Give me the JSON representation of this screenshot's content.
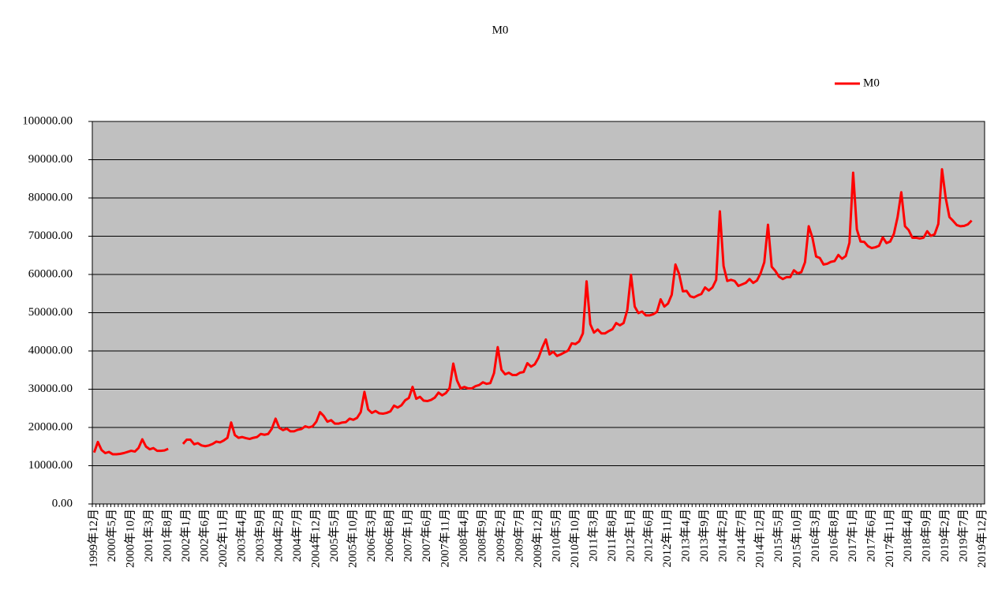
{
  "chart_data": {
    "type": "line",
    "title": "M0",
    "categories": [
      "1999年12月",
      null,
      null,
      null,
      null,
      "2000年5月",
      null,
      null,
      null,
      null,
      "2000年10月",
      null,
      null,
      null,
      null,
      "2001年3月",
      null,
      null,
      null,
      null,
      "2001年8月",
      null,
      null,
      null,
      null,
      "2002年1月",
      null,
      null,
      null,
      null,
      "2002年6月",
      null,
      null,
      null,
      null,
      "2002年11月",
      null,
      null,
      null,
      null,
      "2003年4月",
      null,
      null,
      null,
      null,
      "2003年9月",
      null,
      null,
      null,
      null,
      "2004年2月",
      null,
      null,
      null,
      null,
      "2004年7月",
      null,
      null,
      null,
      null,
      "2004年12月",
      null,
      null,
      null,
      null,
      "2005年5月",
      null,
      null,
      null,
      null,
      "2005年10月",
      null,
      null,
      null,
      null,
      "2006年3月",
      null,
      null,
      null,
      null,
      "2006年8月",
      null,
      null,
      null,
      null,
      "2007年1月",
      null,
      null,
      null,
      null,
      "2007年6月",
      null,
      null,
      null,
      null,
      "2007年11月",
      null,
      null,
      null,
      null,
      "2008年4月",
      null,
      null,
      null,
      null,
      "2008年9月",
      null,
      null,
      null,
      null,
      "2009年2月",
      null,
      null,
      null,
      null,
      "2009年7月",
      null,
      null,
      null,
      null,
      "2009年12月",
      null,
      null,
      null,
      null,
      "2010年5月",
      null,
      null,
      null,
      null,
      "2010年10月",
      null,
      null,
      null,
      null,
      "2011年3月",
      null,
      null,
      null,
      null,
      "2011年8月",
      null,
      null,
      null,
      null,
      "2012年1月",
      null,
      null,
      null,
      null,
      "2012年6月",
      null,
      null,
      null,
      null,
      "2012年11月",
      null,
      null,
      null,
      null,
      "2013年4月",
      null,
      null,
      null,
      null,
      "2013年9月",
      null,
      null,
      null,
      null,
      "2014年2月",
      null,
      null,
      null,
      null,
      "2014年7月",
      null,
      null,
      null,
      null,
      "2014年12月",
      null,
      null,
      null,
      null,
      "2015年5月",
      null,
      null,
      null,
      null,
      "2015年10月",
      null,
      null,
      null,
      null,
      "2016年3月",
      null,
      null,
      null,
      null,
      "2016年8月",
      null,
      null,
      null,
      null,
      "2017年1月",
      null,
      null,
      null,
      null,
      "2017年6月",
      null,
      null,
      null,
      null,
      "2017年11月",
      null,
      null,
      null,
      null,
      "2018年4月",
      null,
      null,
      null,
      null,
      "2018年9月",
      null,
      null,
      null,
      null,
      "2019年2月",
      null,
      null,
      null,
      null,
      "2019年7月",
      null,
      null,
      null,
      null,
      "2019年12月"
    ],
    "series": [
      {
        "name": "M0",
        "color": "#ff0000",
        "values": [
          13456,
          16200,
          14100,
          13300,
          13600,
          13000,
          13000,
          13100,
          13300,
          13600,
          13900,
          13700,
          14650,
          16900,
          15000,
          14300,
          14600,
          13900,
          13900,
          14000,
          14400,
          null,
          null,
          null,
          15700,
          16800,
          16800,
          15600,
          15900,
          15300,
          15100,
          15300,
          15700,
          16300,
          16100,
          16600,
          17300,
          21300,
          18000,
          17300,
          17500,
          17200,
          17000,
          17300,
          17500,
          18300,
          18100,
          18300,
          19700,
          22300,
          19900,
          19300,
          19700,
          19000,
          19000,
          19400,
          19600,
          20300,
          20000,
          20300,
          21500,
          24000,
          23000,
          21500,
          21900,
          21000,
          21000,
          21300,
          21400,
          22300,
          22000,
          22500,
          24000,
          29300,
          24700,
          23800,
          24300,
          23700,
          23600,
          23800,
          24200,
          25700,
          25200,
          25800,
          27100,
          27700,
          30600,
          27500,
          28000,
          27000,
          26900,
          27200,
          27800,
          29100,
          28400,
          29000,
          30300,
          36700,
          32300,
          30200,
          30600,
          30200,
          30200,
          30800,
          31100,
          31800,
          31400,
          31600,
          34200,
          41000,
          35100,
          33900,
          34300,
          33700,
          33700,
          34300,
          34500,
          36800,
          35900,
          36500,
          38200,
          40800,
          43000,
          39100,
          39800,
          38700,
          39100,
          39600,
          40100,
          42000,
          41800,
          42500,
          44600,
          58200,
          47000,
          44800,
          45600,
          44600,
          44600,
          45200,
          45700,
          47300,
          46700,
          47300,
          50700,
          59900,
          51600,
          49900,
          50300,
          49300,
          49300,
          49600,
          50200,
          53500,
          51600,
          52400,
          54700,
          62600,
          60100,
          55600,
          55700,
          54300,
          54000,
          54500,
          54900,
          56600,
          55800,
          56600,
          58600,
          76500,
          62200,
          58300,
          58600,
          58300,
          57000,
          57400,
          57800,
          58800,
          57800,
          58400,
          60300,
          63200,
          73000,
          62000,
          60900,
          59400,
          58800,
          59300,
          59300,
          61100,
          60300,
          60600,
          63200,
          72600,
          69600,
          64700,
          64300,
          62600,
          62800,
          63300,
          63500,
          65100,
          64100,
          64800,
          68300,
          86600,
          71800,
          68600,
          68500,
          67400,
          66900,
          67100,
          67500,
          69700,
          68200,
          68600,
          70600,
          75000,
          81500,
          72600,
          71600,
          69600,
          69600,
          69400,
          69600,
          71300,
          70100,
          70500,
          73200,
          87500,
          80000,
          75000,
          74000,
          72900,
          72600,
          72700,
          73100,
          74100,
          null,
          null,
          null
        ]
      }
    ],
    "ylim": [
      0,
      100000
    ],
    "yticks": [
      {
        "value": 0,
        "label": "0.00"
      },
      {
        "value": 10000,
        "label": "10000.00"
      },
      {
        "value": 20000,
        "label": "20000.00"
      },
      {
        "value": 30000,
        "label": "30000.00"
      },
      {
        "value": 40000,
        "label": "40000.00"
      },
      {
        "value": 50000,
        "label": "50000.00"
      },
      {
        "value": 60000,
        "label": "60000.00"
      },
      {
        "value": 70000,
        "label": "70000.00"
      },
      {
        "value": 80000,
        "label": "80000.00"
      },
      {
        "value": 90000,
        "label": "90000.00"
      },
      {
        "value": 100000,
        "label": "100000.00"
      }
    ],
    "grid": true,
    "legend": "top-right",
    "plot_background": "#c0c0c0"
  }
}
